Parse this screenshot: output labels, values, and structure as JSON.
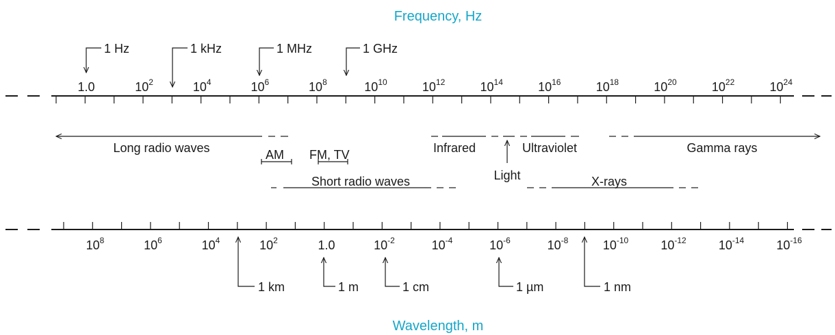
{
  "colors": {
    "title": "#16a6c9",
    "ink": "#1a1a1a"
  },
  "frequency_title": "Frequency, Hz",
  "wavelength_title": "Wavelength, m",
  "frequency_ticks": [
    {
      "base": "1.0",
      "exp": ""
    },
    {
      "base": "10",
      "exp": "2"
    },
    {
      "base": "10",
      "exp": "4"
    },
    {
      "base": "10",
      "exp": "6"
    },
    {
      "base": "10",
      "exp": "8"
    },
    {
      "base": "10",
      "exp": "10"
    },
    {
      "base": "10",
      "exp": "12"
    },
    {
      "base": "10",
      "exp": "14"
    },
    {
      "base": "10",
      "exp": "16"
    },
    {
      "base": "10",
      "exp": "18"
    },
    {
      "base": "10",
      "exp": "20"
    },
    {
      "base": "10",
      "exp": "22"
    },
    {
      "base": "10",
      "exp": "24"
    }
  ],
  "wavelength_ticks": [
    {
      "base": "10",
      "exp": "8"
    },
    {
      "base": "10",
      "exp": "6"
    },
    {
      "base": "10",
      "exp": "4"
    },
    {
      "base": "10",
      "exp": "2"
    },
    {
      "base": "1.0",
      "exp": ""
    },
    {
      "base": "10",
      "exp": "-2"
    },
    {
      "base": "10",
      "exp": "-4"
    },
    {
      "base": "10",
      "exp": "-6"
    },
    {
      "base": "10",
      "exp": "-8"
    },
    {
      "base": "10",
      "exp": "-10"
    },
    {
      "base": "10",
      "exp": "-12"
    },
    {
      "base": "10",
      "exp": "-14"
    },
    {
      "base": "10",
      "exp": "-16"
    }
  ],
  "frequency_markers": [
    "1 Hz",
    "1 kHz",
    "1 MHz",
    "1 GHz"
  ],
  "wavelength_markers": [
    "1 km",
    "1 m",
    "1 cm",
    "1 µm",
    "1 nm"
  ],
  "bands": {
    "long_radio": "Long radio waves",
    "am": "AM",
    "fm_tv": "FM, TV",
    "short_radio": "Short radio waves",
    "infrared": "Infrared",
    "light": "Light",
    "ultraviolet": "Ultraviolet",
    "x_rays": "X-rays",
    "gamma": "Gamma rays"
  }
}
